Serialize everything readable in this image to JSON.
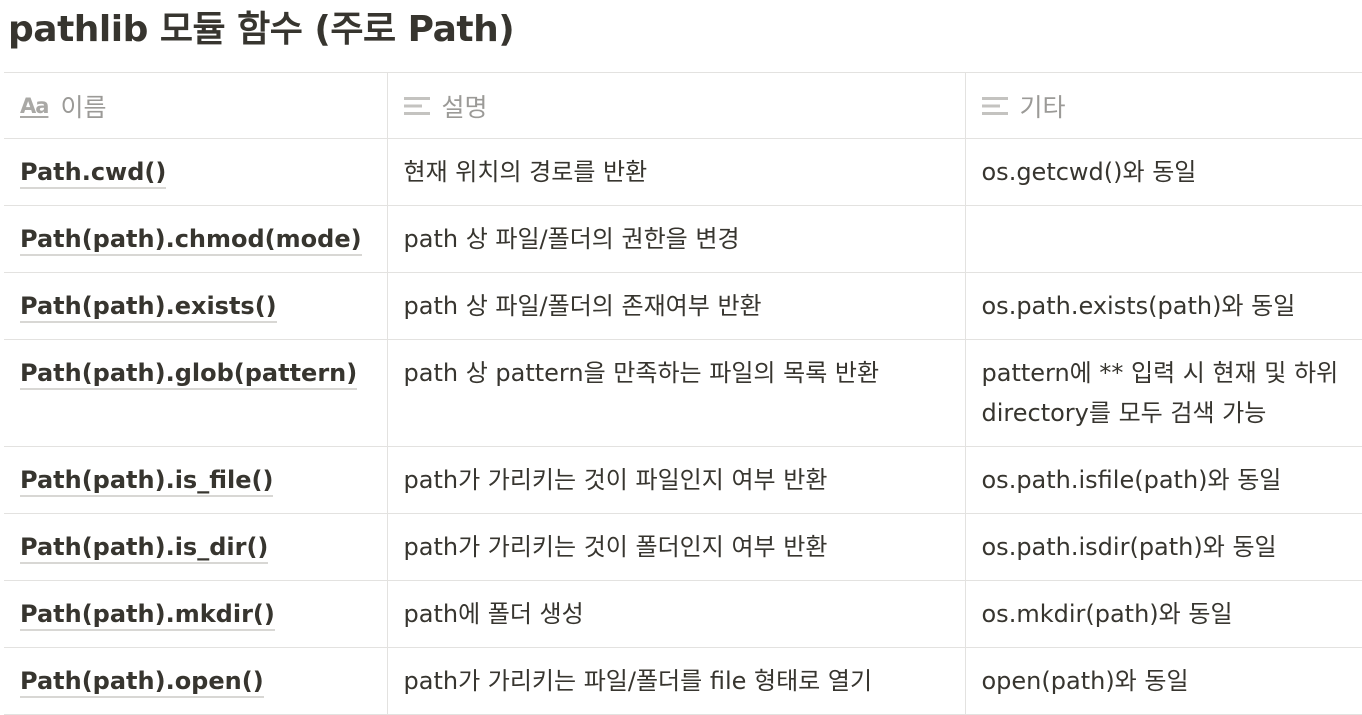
{
  "page": {
    "title": "pathlib 모듈 함수 (주로 Path)"
  },
  "table": {
    "columns": [
      {
        "label": "이름",
        "icon": "title-property-icon"
      },
      {
        "label": "설명",
        "icon": "text-property-icon"
      },
      {
        "label": "기타",
        "icon": "text-property-icon"
      }
    ],
    "title_icon_glyph": "Aa",
    "rows": [
      {
        "name": "Path.cwd()",
        "desc": "현재 위치의 경로를 반환",
        "etc": "os.getcwd()와 동일"
      },
      {
        "name": "Path(path).chmod(mode)",
        "desc": "path 상 파일/폴더의 권한을 변경",
        "etc": ""
      },
      {
        "name": "Path(path).exists()",
        "desc": "path 상 파일/폴더의 존재여부 반환",
        "etc": "os.path.exists(path)와 동일"
      },
      {
        "name": "Path(path).glob(pattern)",
        "desc": "path 상 pattern을 만족하는 파일의 목록 반환",
        "etc": "pattern에 ** 입력 시 현재 및 하위 directory를 모두 검색 가능"
      },
      {
        "name": "Path(path).is_file()",
        "desc": "path가 가리키는 것이 파일인지 여부 반환",
        "etc": "os.path.isfile(path)와 동일"
      },
      {
        "name": "Path(path).is_dir()",
        "desc": "path가 가리키는 것이 폴더인지 여부 반환",
        "etc": "os.path.isdir(path)와 동일"
      },
      {
        "name": "Path(path).mkdir()",
        "desc": "path에 폴더 생성",
        "etc": "os.mkdir(path)와 동일"
      },
      {
        "name": "Path(path).open()",
        "desc": "path가 가리키는 파일/폴더를 file 형태로 열기",
        "etc": "open(path)와 동일"
      }
    ]
  },
  "colors": {
    "text": "#37352f",
    "header_text": "#9b9a97",
    "border": "#e3e2e0"
  }
}
